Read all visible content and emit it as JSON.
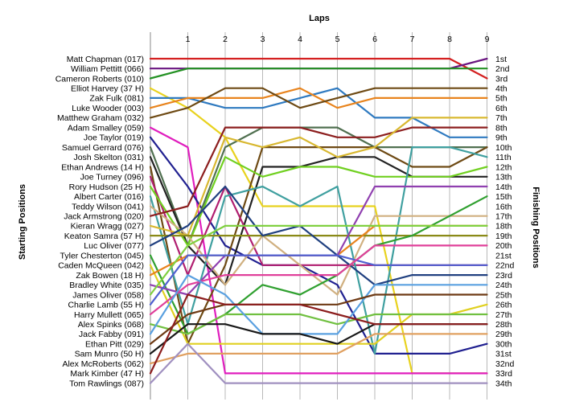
{
  "chart_data": {
    "type": "line",
    "title": "",
    "xlabel": "Laps",
    "ylabel_left": "Starting Positions",
    "ylabel_right": "Finishing Positions",
    "x_ticks": [
      "1",
      "2",
      "3",
      "4",
      "5",
      "6",
      "7",
      "8",
      "9"
    ],
    "start_labels": [
      "Matt Chapman (017)",
      "William Pettitt (066)",
      "Cameron Roberts (010)",
      "Elliot Harvey (37 H)",
      "Zak Fulk (081)",
      "Luke Wooder (003)",
      "Matthew Graham (032)",
      "Adam Smalley (059)",
      "Joe Taylor (019)",
      "Samuel Gerrard (076)",
      "Josh Skelton (031)",
      "Ethan Andrews (14 H)",
      "Joe Turney (096)",
      "Rory Hudson (25 H)",
      "Albert Carter (016)",
      "Teddy Wilson (041)",
      "Jack Armstrong (020)",
      "Kieran Wragg (027)",
      "Keaton Samra (57 H)",
      "Luc Oliver (077)",
      "Tyler Chesterton (045)",
      "Caden McQueen (042)",
      "Zak Bowen (18 H)",
      "Bradley White (035)",
      "James Oliver (058)",
      "Charlie Lamb (55  H)",
      "Harry Mullett (065)",
      "Alex Spinks (068)",
      "Jack Fabby (091)",
      "Ethan Pitt (029)",
      "Sam Munro (50 H)",
      "Alex McRoberts (062)",
      "Mark Kimber (47 H)",
      "Tom Rawlings (087)"
    ],
    "finish_labels": [
      "1st",
      "2nd",
      "3rd",
      "4th",
      "5th",
      "6th",
      "7th",
      "8th",
      "9th",
      "10th",
      "11th",
      "12th",
      "13th",
      "14th",
      "15th",
      "16th",
      "17th",
      "18th",
      "19th",
      "20th",
      "21st",
      "22nd",
      "23rd",
      "24th",
      "25th",
      "26th",
      "27th",
      "28th",
      "29th",
      "30th",
      "31st",
      "32nd",
      "33rd",
      "34th"
    ],
    "ylim": [
      1,
      34
    ],
    "grid": "vertical",
    "series": [
      {
        "color": "#d42020",
        "values": [
          1,
          1,
          1,
          1,
          1,
          1,
          1,
          1,
          1,
          3
        ]
      },
      {
        "color": "#6a1580",
        "values": [
          2,
          2,
          2,
          2,
          2,
          2,
          2,
          2,
          2,
          1
        ]
      },
      {
        "color": "#239123",
        "values": [
          3,
          2,
          2,
          2,
          2,
          2,
          2,
          2,
          2,
          2
        ]
      },
      {
        "color": "#e8d21e",
        "values": [
          4,
          6,
          9,
          16,
          16,
          16,
          16,
          33,
          33,
          33
        ]
      },
      {
        "color": "#2f7ac0",
        "values": [
          5,
          5,
          6,
          6,
          5,
          4,
          7,
          7,
          9,
          9
        ]
      },
      {
        "color": "#e8841e",
        "values": [
          6,
          5,
          5,
          5,
          4,
          6,
          5,
          5,
          5,
          5
        ]
      },
      {
        "color": "#6e4a14",
        "values": [
          7,
          6,
          4,
          4,
          6,
          5,
          4,
          4,
          4,
          4
        ]
      },
      {
        "color": "#e01ebe",
        "values": [
          8,
          10,
          33,
          33,
          33,
          33,
          33,
          33,
          33,
          33
        ]
      },
      {
        "color": "#202090",
        "values": [
          9,
          14,
          20,
          22,
          22,
          24,
          31,
          31,
          31,
          30
        ]
      },
      {
        "color": "#507050",
        "values": [
          10,
          20,
          10,
          8,
          8,
          8,
          10,
          10,
          10,
          10
        ]
      },
      {
        "color": "#222222",
        "values": [
          11,
          20,
          24,
          12,
          12,
          11,
          11,
          13,
          13,
          13
        ]
      },
      {
        "color": "#6e4a14",
        "values": [
          12,
          30,
          22,
          10,
          10,
          10,
          10,
          12,
          12,
          10
        ]
      },
      {
        "color": "#b01e70",
        "values": [
          13,
          23,
          14,
          22,
          22,
          22,
          22,
          22,
          22,
          22
        ]
      },
      {
        "color": "#70d020",
        "values": [
          14,
          20,
          11,
          13,
          12,
          12,
          13,
          13,
          13,
          12
        ]
      },
      {
        "color": "#40a0a0",
        "values": [
          15,
          28,
          15,
          14,
          16,
          14,
          31,
          10,
          10,
          11
        ]
      },
      {
        "color": "#d0b080",
        "values": [
          16,
          19,
          24,
          19,
          22,
          25,
          17,
          17,
          17,
          17
        ]
      },
      {
        "color": "#8c1e1e",
        "values": [
          17,
          16,
          8,
          8,
          8,
          9,
          9,
          8,
          8,
          8
        ]
      },
      {
        "color": "#d8b830",
        "values": [
          18,
          19,
          9,
          10,
          9,
          11,
          10,
          7,
          7,
          7
        ]
      },
      {
        "color": "#8a8a18",
        "values": [
          19,
          19,
          19,
          19,
          19,
          19,
          19,
          19,
          19,
          19
        ]
      },
      {
        "color": "#204080",
        "values": [
          20,
          18,
          14,
          19,
          18,
          21,
          24,
          23,
          23,
          23
        ]
      },
      {
        "color": "#30a030",
        "values": [
          21,
          29,
          27,
          24,
          25,
          23,
          20,
          19,
          17,
          15
        ]
      },
      {
        "color": "#e0d020",
        "values": [
          22,
          30,
          30,
          30,
          30,
          30,
          30,
          27,
          27,
          26
        ]
      },
      {
        "color": "#e8841e",
        "values": [
          23,
          21,
          21,
          21,
          21,
          21,
          18,
          18,
          18,
          18
        ]
      },
      {
        "color": "#9040b0",
        "values": [
          24,
          25,
          21,
          21,
          21,
          21,
          14,
          14,
          14,
          14
        ]
      },
      {
        "color": "#80d040",
        "values": [
          25,
          20,
          18,
          18,
          18,
          18,
          18,
          18,
          18,
          18
        ]
      },
      {
        "color": "#5060d0",
        "values": [
          26,
          21,
          21,
          21,
          21,
          21,
          22,
          22,
          22,
          22
        ]
      },
      {
        "color": "#e0409a",
        "values": [
          27,
          24,
          23,
          23,
          23,
          23,
          20,
          20,
          20,
          20
        ]
      },
      {
        "color": "#70c040",
        "values": [
          28,
          29,
          27,
          27,
          27,
          28,
          27,
          27,
          27,
          27
        ]
      },
      {
        "color": "#5aa0e0",
        "values": [
          29,
          23,
          25,
          29,
          29,
          29,
          24,
          24,
          24,
          24
        ]
      },
      {
        "color": "#6e3a14",
        "values": [
          30,
          27,
          26,
          26,
          26,
          26,
          25,
          25,
          25,
          25
        ]
      },
      {
        "color": "#181818",
        "values": [
          31,
          28,
          28,
          29,
          29,
          30,
          28,
          28,
          28,
          28
        ]
      },
      {
        "color": "#e0a060",
        "values": [
          32,
          31,
          31,
          31,
          31,
          31,
          29,
          29,
          29,
          29
        ]
      },
      {
        "color": "#8c1e1e",
        "values": [
          33,
          25,
          26,
          26,
          26,
          27,
          28,
          28,
          28,
          28
        ]
      },
      {
        "color": "#a090c0",
        "values": [
          34,
          30,
          34,
          34,
          34,
          34,
          34,
          34,
          34,
          34
        ]
      }
    ]
  }
}
